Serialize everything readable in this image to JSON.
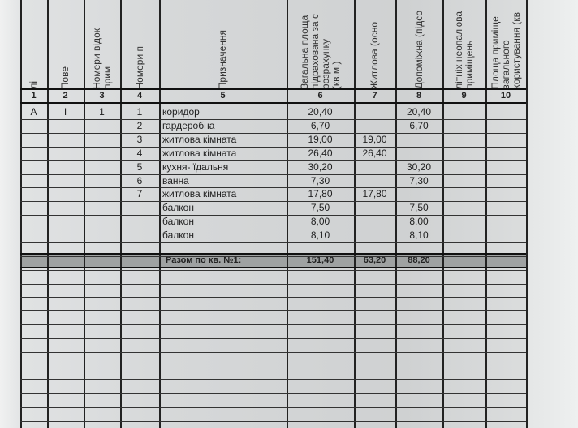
{
  "headers": [
    {
      "col": "1",
      "text": "лі"
    },
    {
      "col": "2",
      "text": "Пове"
    },
    {
      "col": "3",
      "text": "Номери відок\nприм"
    },
    {
      "col": "4",
      "text": "Номери п"
    },
    {
      "col": "5",
      "text": "Призначення"
    },
    {
      "col": "6",
      "text": "Загальна площа\nпідрахована за с\nрозрахунку\n(кв.м.)"
    },
    {
      "col": "7",
      "text": "Житлова (осно"
    },
    {
      "col": "8",
      "text": "Допоміжна (підсо"
    },
    {
      "col": "9",
      "text": "літніх неопалюва\nприміщень"
    },
    {
      "col": "10",
      "text": "Площа приміще\nзагального\nкористування (кв"
    }
  ],
  "rows": [
    {
      "c1": "A",
      "c2": "I",
      "c3": "1",
      "c4": "1",
      "name": "коридор",
      "total": "20,40",
      "living": "",
      "aux": "20,40"
    },
    {
      "c1": "",
      "c2": "",
      "c3": "",
      "c4": "2",
      "name": "гардеробна",
      "total": "6,70",
      "living": "",
      "aux": "6,70"
    },
    {
      "c1": "",
      "c2": "",
      "c3": "",
      "c4": "3",
      "name": "житлова кімната",
      "total": "19,00",
      "living": "19,00",
      "aux": ""
    },
    {
      "c1": "",
      "c2": "",
      "c3": "",
      "c4": "4",
      "name": "житлова кімната",
      "total": "26,40",
      "living": "26,40",
      "aux": ""
    },
    {
      "c1": "",
      "c2": "",
      "c3": "",
      "c4": "5",
      "name": "кухня- їдальня",
      "total": "30,20",
      "living": "",
      "aux": "30,20"
    },
    {
      "c1": "",
      "c2": "",
      "c3": "",
      "c4": "6",
      "name": "ванна",
      "total": "7,30",
      "living": "",
      "aux": "7,30"
    },
    {
      "c1": "",
      "c2": "",
      "c3": "",
      "c4": "7",
      "name": "житлова кімната",
      "total": "17,80",
      "living": "17,80",
      "aux": ""
    },
    {
      "c1": "",
      "c2": "",
      "c3": "",
      "c4": "",
      "name": "балкон",
      "total": "7,50",
      "living": "",
      "aux": "7,50"
    },
    {
      "c1": "",
      "c2": "",
      "c3": "",
      "c4": "",
      "name": "балкон",
      "total": "8,00",
      "living": "",
      "aux": "8,00"
    },
    {
      "c1": "",
      "c2": "",
      "c3": "",
      "c4": "",
      "name": "балкон",
      "total": "8,10",
      "living": "",
      "aux": "8,10"
    }
  ],
  "summary": {
    "label": "Разом по кв. №1:",
    "total": "151,40",
    "living": "63,20",
    "aux": "88,20"
  }
}
